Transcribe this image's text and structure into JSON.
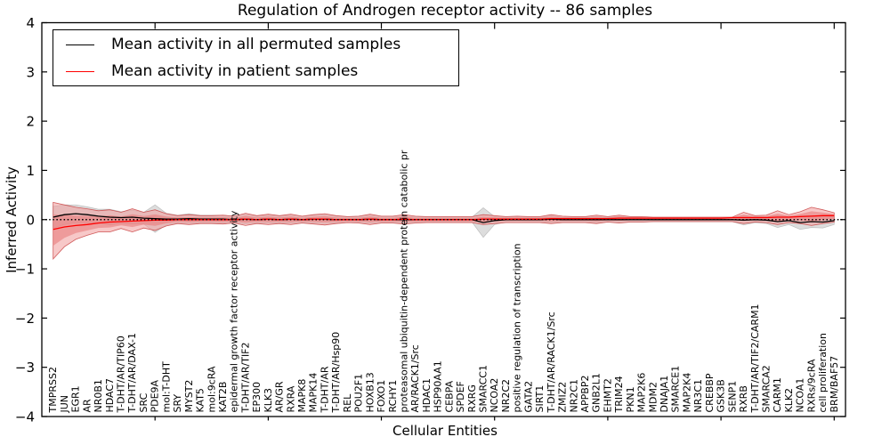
{
  "chart_data": {
    "type": "line",
    "title": "Regulation of Androgen receptor activity -- 86 samples",
    "xlabel": "Cellular Entities",
    "ylabel": "Inferred Activity",
    "xlim": [
      0,
      71
    ],
    "ylim": [
      -4,
      4
    ],
    "yticks": [
      -4,
      -3,
      -2,
      -1,
      0,
      1,
      2,
      3,
      4
    ],
    "xticks": [
      10,
      20,
      30,
      40,
      50,
      60,
      70
    ],
    "grid": false,
    "legend_position": "upper left",
    "zero_line_style": "black dotted at y=0",
    "categories": [
      "TMPRSS2",
      "JUN",
      "EGR1",
      "AR",
      "NR0B1",
      "HDAC7",
      "T-DHT/AR/TIP60",
      "T-DHT/AR/DAX-1",
      "SRC",
      "PDE9A",
      "mol:T-DHT",
      "SRY",
      "MYST2",
      "KAT5",
      "mol:9cRA",
      "KAT2B",
      "epidermal growth factor receptor activity",
      "T-DHT/AR/TIF2",
      "EP300",
      "KLK3",
      "AR/GR",
      "RXRA",
      "MAPK8",
      "MAPK14",
      "T-DHT/AR",
      "T-DHT/AR/Hsp90",
      "REL",
      "POU2F1",
      "HOXB13",
      "FOXO1",
      "RCHY1",
      "proteasomal ubiquitin-dependent protein catabolic pr",
      "AR/RACK1/Src",
      "HDAC1",
      "HSP90AA1",
      "CEBPA",
      "SPDEF",
      "RXRG",
      "SMARCC1",
      "NCOA2",
      "NR2C2",
      "positive regulation of transcription",
      "GATA2",
      "SIRT1",
      "T-DHT/AR/RACK1/Src",
      "ZMIZ2",
      "NR2C1",
      "APPBP2",
      "GNB2L1",
      "EHMT2",
      "TRIM24",
      "PKN1",
      "MAP2K6",
      "MDM2",
      "DNAJA1",
      "SMARCE1",
      "MAP2K4",
      "NR3C1",
      "CREBBP",
      "GSK3B",
      "SENP1",
      "RXRB",
      "T-DHT/AR/TIF2/CARM1",
      "SMARCA2",
      "CARM1",
      "KLK2",
      "NCOA1",
      "RXRs/9cRA",
      "cell proliferation",
      "BRM/BAF57"
    ],
    "series": [
      {
        "name": "Mean activity in all permuted samples",
        "color": "#000000",
        "band_color": "#bcbcbc",
        "band_edge_color": "#9e9e9e",
        "values": [
          0.05,
          0.1,
          0.12,
          0.1,
          0.07,
          0.05,
          0.04,
          0.05,
          0.03,
          0.02,
          0.01,
          0.01,
          0.02,
          0.01,
          0.01,
          0.01,
          0.0,
          0.01,
          0.0,
          0.01,
          0.0,
          0.01,
          0.0,
          0.01,
          0.01,
          0.0,
          0.0,
          0.0,
          0.01,
          0.0,
          0.0,
          0.0,
          0.0,
          0.0,
          0.0,
          0.0,
          0.0,
          0.0,
          -0.06,
          -0.02,
          0.0,
          0.0,
          0.0,
          0.0,
          0.01,
          0.0,
          0.0,
          0.0,
          0.0,
          0.0,
          0.0,
          0.0,
          0.0,
          0.0,
          0.0,
          0.0,
          0.0,
          0.0,
          0.0,
          0.0,
          0.0,
          -0.01,
          0.0,
          -0.01,
          -0.04,
          -0.02,
          -0.06,
          -0.04,
          -0.05,
          -0.02
        ],
        "band_half_width": [
          0.22,
          0.2,
          0.18,
          0.16,
          0.14,
          0.16,
          0.12,
          0.14,
          0.12,
          0.28,
          0.12,
          0.08,
          0.1,
          0.08,
          0.08,
          0.08,
          0.07,
          0.1,
          0.07,
          0.08,
          0.07,
          0.08,
          0.06,
          0.08,
          0.09,
          0.07,
          0.06,
          0.06,
          0.08,
          0.06,
          0.06,
          0.07,
          0.06,
          0.05,
          0.05,
          0.05,
          0.05,
          0.05,
          0.3,
          0.08,
          0.05,
          0.06,
          0.05,
          0.05,
          0.07,
          0.05,
          0.05,
          0.05,
          0.06,
          0.05,
          0.06,
          0.05,
          0.05,
          0.04,
          0.04,
          0.04,
          0.04,
          0.04,
          0.04,
          0.04,
          0.04,
          0.1,
          0.06,
          0.07,
          0.12,
          0.08,
          0.14,
          0.12,
          0.12,
          0.08
        ]
      },
      {
        "name": "Mean activity in patient samples",
        "color": "#ff0000",
        "band_color": "#f19a9a",
        "band_edge_color": "#cc4c4c",
        "inner_band_color": "#e87777",
        "values": [
          -0.2,
          -0.15,
          -0.12,
          -0.1,
          -0.07,
          -0.05,
          -0.04,
          -0.03,
          -0.02,
          -0.01,
          -0.01,
          0.0,
          0.0,
          0.0,
          0.0,
          0.0,
          0.0,
          0.01,
          0.0,
          0.01,
          0.0,
          0.01,
          0.0,
          0.01,
          0.01,
          0.0,
          0.0,
          0.0,
          0.01,
          0.0,
          0.0,
          0.01,
          0.0,
          0.0,
          0.0,
          0.0,
          0.0,
          0.0,
          0.01,
          0.01,
          0.01,
          0.01,
          0.01,
          0.01,
          0.02,
          0.02,
          0.02,
          0.02,
          0.02,
          0.02,
          0.03,
          0.03,
          0.03,
          0.03,
          0.03,
          0.03,
          0.03,
          0.03,
          0.03,
          0.03,
          0.04,
          0.04,
          0.04,
          0.04,
          0.05,
          0.05,
          0.06,
          0.07,
          0.08,
          0.08
        ],
        "band_upper": [
          0.35,
          0.3,
          0.25,
          0.22,
          0.18,
          0.2,
          0.15,
          0.22,
          0.15,
          0.2,
          0.12,
          0.08,
          0.1,
          0.08,
          0.08,
          0.09,
          0.07,
          0.13,
          0.08,
          0.11,
          0.08,
          0.11,
          0.07,
          0.1,
          0.12,
          0.08,
          0.06,
          0.07,
          0.11,
          0.07,
          0.07,
          0.1,
          0.07,
          0.06,
          0.06,
          0.06,
          0.06,
          0.06,
          0.1,
          0.08,
          0.06,
          0.07,
          0.06,
          0.06,
          0.1,
          0.07,
          0.06,
          0.06,
          0.09,
          0.06,
          0.09,
          0.06,
          0.06,
          0.05,
          0.05,
          0.05,
          0.05,
          0.05,
          0.05,
          0.05,
          0.05,
          0.15,
          0.08,
          0.09,
          0.18,
          0.1,
          0.16,
          0.25,
          0.2,
          0.14
        ],
        "band_lower": [
          -0.8,
          -0.55,
          -0.4,
          -0.32,
          -0.25,
          -0.25,
          -0.18,
          -0.25,
          -0.17,
          -0.22,
          -0.13,
          -0.08,
          -0.1,
          -0.08,
          -0.08,
          -0.09,
          -0.07,
          -0.12,
          -0.08,
          -0.1,
          -0.08,
          -0.1,
          -0.07,
          -0.09,
          -0.11,
          -0.08,
          -0.06,
          -0.07,
          -0.1,
          -0.07,
          -0.07,
          -0.09,
          -0.07,
          -0.06,
          -0.06,
          -0.06,
          -0.06,
          -0.06,
          -0.1,
          -0.08,
          -0.06,
          -0.06,
          -0.06,
          -0.06,
          -0.08,
          -0.06,
          -0.06,
          -0.06,
          -0.08,
          -0.05,
          -0.07,
          -0.05,
          -0.05,
          -0.04,
          -0.04,
          -0.04,
          -0.04,
          -0.04,
          -0.04,
          -0.04,
          -0.04,
          -0.08,
          -0.05,
          -0.06,
          -0.1,
          -0.06,
          -0.08,
          -0.12,
          -0.08,
          -0.05
        ]
      }
    ]
  }
}
